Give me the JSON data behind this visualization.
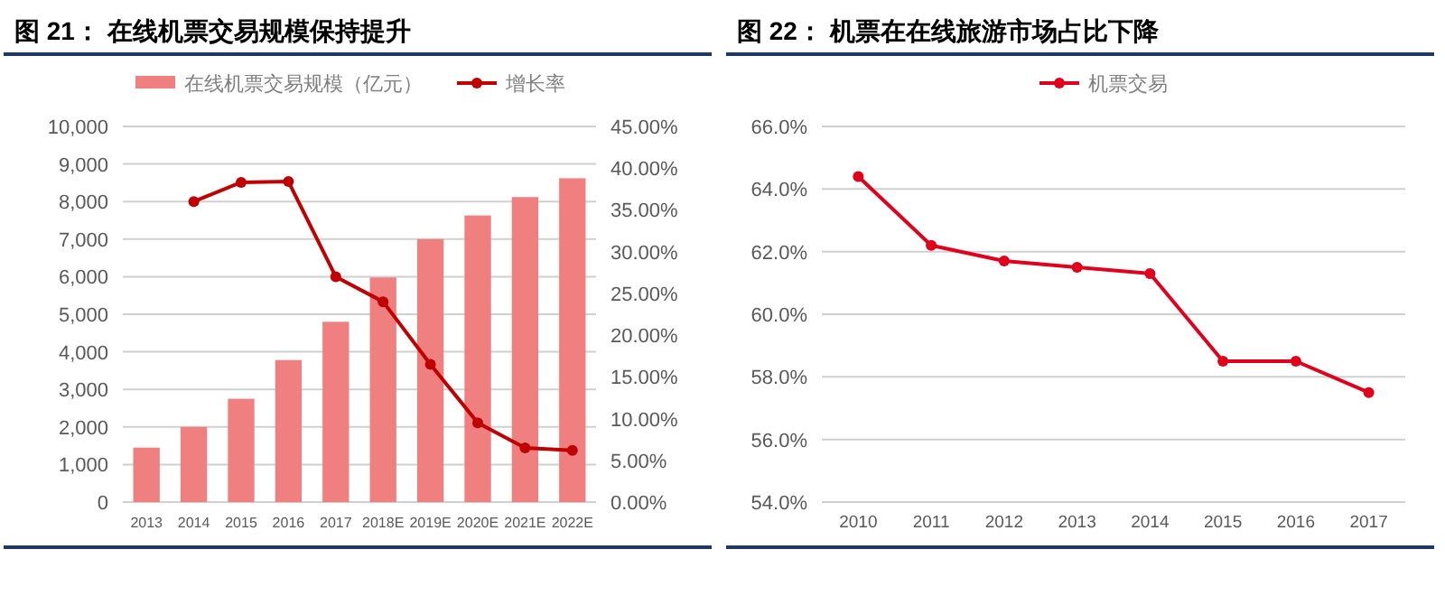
{
  "chart_data": [
    {
      "type": "bar",
      "title": "图 21：  在线机票交易规模保持提升",
      "categories": [
        "2013",
        "2014",
        "2015",
        "2016",
        "2017",
        "2018E",
        "2019E",
        "2020E",
        "2021E",
        "2022E"
      ],
      "series": [
        {
          "name": "在线机票交易规模（亿元）",
          "color": "#f08080",
          "values": [
            1450,
            2000,
            2750,
            3780,
            4800,
            5980,
            7000,
            7630,
            8120,
            8620
          ]
        },
        {
          "name": "增长率",
          "type": "line",
          "axis": "y2",
          "color": "#c00000",
          "values": [
            null,
            36.0,
            38.3,
            38.4,
            27.0,
            24.0,
            16.5,
            9.5,
            6.5,
            6.2
          ]
        }
      ],
      "ylim": [
        0,
        10000
      ],
      "yticks": [
        0,
        {
          "value": 1000,
          "label": "1,000"
        },
        {
          "value": 2000,
          "label": "2,000"
        },
        {
          "value": 3000,
          "label": "3,000"
        },
        {
          "value": 4000,
          "label": "4,000"
        },
        {
          "value": 5000,
          "label": "5,000"
        },
        {
          "value": 6000,
          "label": "6,000"
        },
        {
          "value": 7000,
          "label": "7,000"
        },
        {
          "value": 8000,
          "label": "8,000"
        },
        {
          "value": 9000,
          "label": "9,000"
        },
        {
          "value": 10000,
          "label": "10,000"
        }
      ],
      "y2lim": [
        0,
        45
      ],
      "y2ticks": [
        {
          "value": 0,
          "label": "0.00%"
        },
        {
          "value": 5,
          "label": "5.00%"
        },
        {
          "value": 10,
          "label": "10.00%"
        },
        {
          "value": 15,
          "label": "15.00%"
        },
        {
          "value": 20,
          "label": "20.00%"
        },
        {
          "value": 25,
          "label": "25.00%"
        },
        {
          "value": 30,
          "label": "30.00%"
        },
        {
          "value": 35,
          "label": "35.00%"
        },
        {
          "value": 40,
          "label": "40.00%"
        },
        {
          "value": 45,
          "label": "45.00%"
        }
      ],
      "grid": "y",
      "legend": "top",
      "marker": "circle"
    },
    {
      "type": "line",
      "title": "图 22：  机票在在线旅游市场占比下降",
      "categories": [
        "2010",
        "2011",
        "2012",
        "2013",
        "2014",
        "2015",
        "2016",
        "2017"
      ],
      "series": [
        {
          "name": "机票交易",
          "color": "#e0001b",
          "values": [
            64.4,
            62.2,
            61.7,
            61.5,
            61.3,
            58.5,
            58.5,
            57.5
          ]
        }
      ],
      "ylim": [
        54,
        66
      ],
      "yticks": [
        {
          "value": 54,
          "label": "54.0%"
        },
        {
          "value": 56,
          "label": "56.0%"
        },
        {
          "value": 58,
          "label": "58.0%"
        },
        {
          "value": 60,
          "label": "60.0%"
        },
        {
          "value": 62,
          "label": "62.0%"
        },
        {
          "value": 64,
          "label": "64.0%"
        },
        {
          "value": 66,
          "label": "66.0%"
        }
      ],
      "grid": "y",
      "legend": "top",
      "marker": "circle"
    }
  ]
}
